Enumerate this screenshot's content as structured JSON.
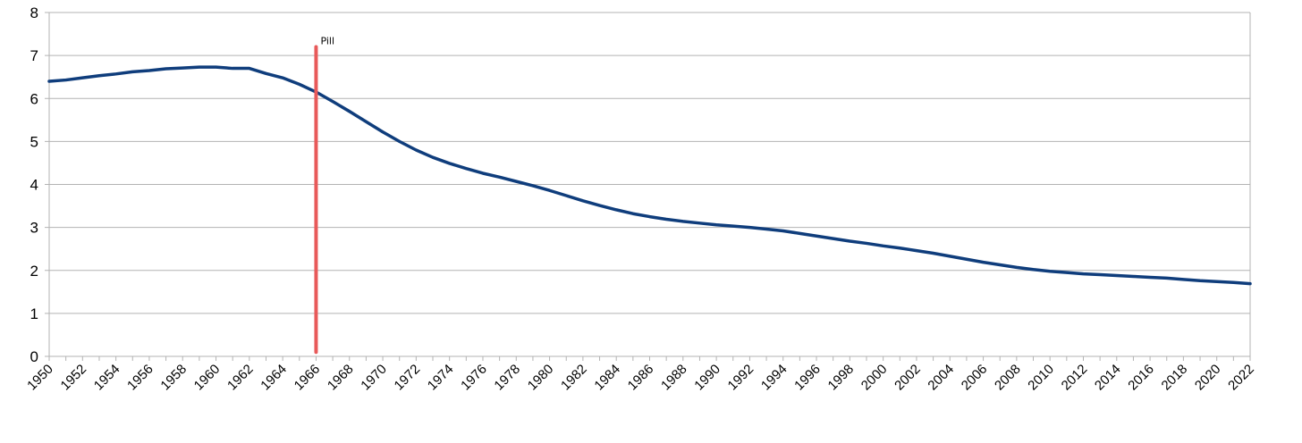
{
  "chart_data": {
    "type": "line",
    "title": "",
    "xlabel": "",
    "ylabel": "",
    "xlim": [
      1950,
      2022
    ],
    "ylim": [
      0,
      8
    ],
    "y_ticks": [
      "0",
      "1",
      "2",
      "3",
      "4",
      "5",
      "6",
      "7",
      "8"
    ],
    "x_ticks": [
      "1950",
      "1952",
      "1954",
      "1956",
      "1958",
      "1960",
      "1962",
      "1964",
      "1966",
      "1968",
      "1970",
      "1972",
      "1974",
      "1976",
      "1978",
      "1980",
      "1982",
      "1984",
      "1986",
      "1988",
      "1990",
      "1992",
      "1994",
      "1996",
      "1998",
      "2000",
      "2002",
      "2004",
      "2006",
      "2008",
      "2010",
      "2012",
      "2014",
      "2016",
      "2018",
      "2020",
      "2022"
    ],
    "grid": true,
    "legend": "none",
    "series": [
      {
        "color": "#0f3d7c",
        "x": [
          1950,
          1951,
          1952,
          1953,
          1954,
          1955,
          1956,
          1957,
          1958,
          1959,
          1960,
          1961,
          1962,
          1963,
          1964,
          1965,
          1966,
          1967,
          1968,
          1969,
          1970,
          1971,
          1972,
          1973,
          1974,
          1975,
          1976,
          1977,
          1978,
          1979,
          1980,
          1981,
          1982,
          1983,
          1984,
          1985,
          1986,
          1987,
          1988,
          1989,
          1990,
          1991,
          1992,
          1993,
          1994,
          1995,
          1996,
          1997,
          1998,
          1999,
          2000,
          2001,
          2002,
          2003,
          2004,
          2005,
          2006,
          2007,
          2008,
          2009,
          2010,
          2011,
          2012,
          2013,
          2014,
          2015,
          2016,
          2017,
          2018,
          2019,
          2020,
          2021,
          2022
        ],
        "values": [
          6.4,
          6.43,
          6.48,
          6.53,
          6.57,
          6.62,
          6.65,
          6.69,
          6.71,
          6.73,
          6.73,
          6.7,
          6.7,
          6.58,
          6.48,
          6.33,
          6.15,
          5.93,
          5.7,
          5.46,
          5.22,
          5.0,
          4.8,
          4.63,
          4.49,
          4.37,
          4.26,
          4.17,
          4.07,
          3.97,
          3.86,
          3.74,
          3.62,
          3.51,
          3.41,
          3.32,
          3.25,
          3.19,
          3.14,
          3.1,
          3.06,
          3.03,
          3.0,
          2.96,
          2.92,
          2.86,
          2.8,
          2.74,
          2.68,
          2.63,
          2.57,
          2.52,
          2.46,
          2.4,
          2.33,
          2.26,
          2.19,
          2.13,
          2.07,
          2.02,
          1.98,
          1.95,
          1.92,
          1.9,
          1.88,
          1.86,
          1.84,
          1.82,
          1.79,
          1.76,
          1.74,
          1.72,
          1.69
        ]
      }
    ],
    "annotations": [
      {
        "text": "Pill",
        "x": 1966,
        "y_from": 0.1,
        "y_to": 7.2,
        "color": "#e85a5a"
      }
    ]
  }
}
